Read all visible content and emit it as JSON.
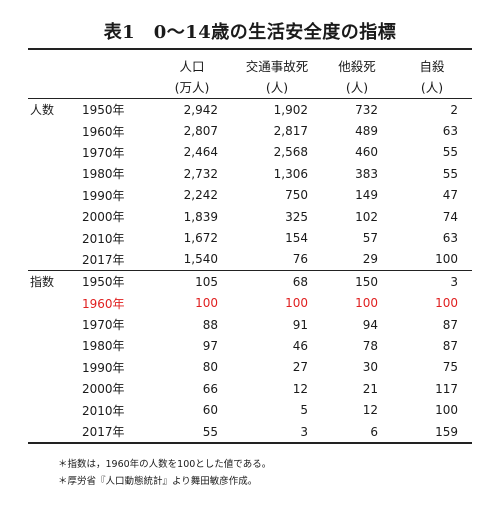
{
  "title": "表1　0〜14歳の生活安全度の指標",
  "header": {
    "col1": {
      "line1": "人口",
      "line2": "(万人)"
    },
    "col2": {
      "line1": "交通事故死",
      "line2": "(人)"
    },
    "col3": {
      "line1": "他殺死",
      "line2": "(人)"
    },
    "col4": {
      "line1": "自殺",
      "line2": "(人)"
    }
  },
  "sections": {
    "count": "人数",
    "index": "指数"
  },
  "count_rows": [
    [
      "1950年",
      "2,942",
      "1,902",
      "732",
      "2"
    ],
    [
      "1960年",
      "2,807",
      "2,817",
      "489",
      "63"
    ],
    [
      "1970年",
      "2,464",
      "2,568",
      "460",
      "55"
    ],
    [
      "1980年",
      "2,732",
      "1,306",
      "383",
      "55"
    ],
    [
      "1990年",
      "2,242",
      "750",
      "149",
      "47"
    ],
    [
      "2000年",
      "1,839",
      "325",
      "102",
      "74"
    ],
    [
      "2010年",
      "1,672",
      "154",
      "57",
      "63"
    ],
    [
      "2017年",
      "1,540",
      "76",
      "29",
      "100"
    ]
  ],
  "index_rows": [
    [
      "1950年",
      "105",
      "68",
      "150",
      "3"
    ],
    [
      "1960年",
      "100",
      "100",
      "100",
      "100"
    ],
    [
      "1970年",
      "88",
      "91",
      "94",
      "87"
    ],
    [
      "1980年",
      "97",
      "46",
      "78",
      "87"
    ],
    [
      "1990年",
      "80",
      "27",
      "30",
      "75"
    ],
    [
      "2000年",
      "66",
      "12",
      "21",
      "117"
    ],
    [
      "2010年",
      "60",
      "5",
      "12",
      "100"
    ],
    [
      "2017年",
      "55",
      "3",
      "6",
      "159"
    ]
  ],
  "highlight_color": "#e02020",
  "notes": [
    "＊指数は，1960年の人数を100とした値である。",
    "＊厚労省『人口動態統計』より舞田敏彦作成。"
  ]
}
